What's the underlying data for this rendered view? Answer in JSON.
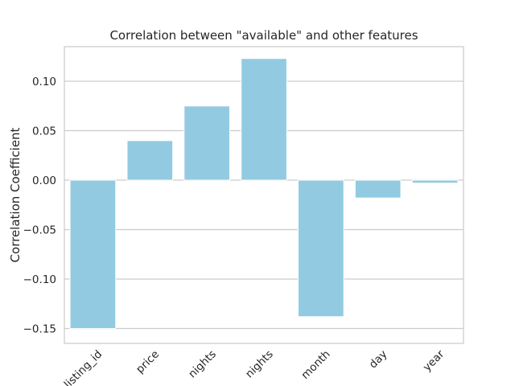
{
  "chart_data": {
    "type": "bar",
    "title": "Correlation between \"available\" and other features",
    "xlabel": "",
    "ylabel": "Correlation Coefficient",
    "categories": [
      "listing_id",
      "price",
      "nights",
      "nights",
      "month",
      "day",
      "year"
    ],
    "values": [
      -0.15,
      0.04,
      0.075,
      0.123,
      -0.138,
      -0.018,
      -0.003
    ],
    "ylim": [
      -0.165,
      0.135
    ],
    "yticks": [
      -0.15,
      -0.1,
      -0.05,
      0.0,
      0.05,
      0.1
    ],
    "ytick_labels": [
      "−0.15",
      "−0.10",
      "−0.05",
      "0.00",
      "0.05",
      "0.10"
    ],
    "grid": true,
    "bar_color": "#92cbe1",
    "grid_color": "#cccccc",
    "frame_color": "#cccccc"
  }
}
